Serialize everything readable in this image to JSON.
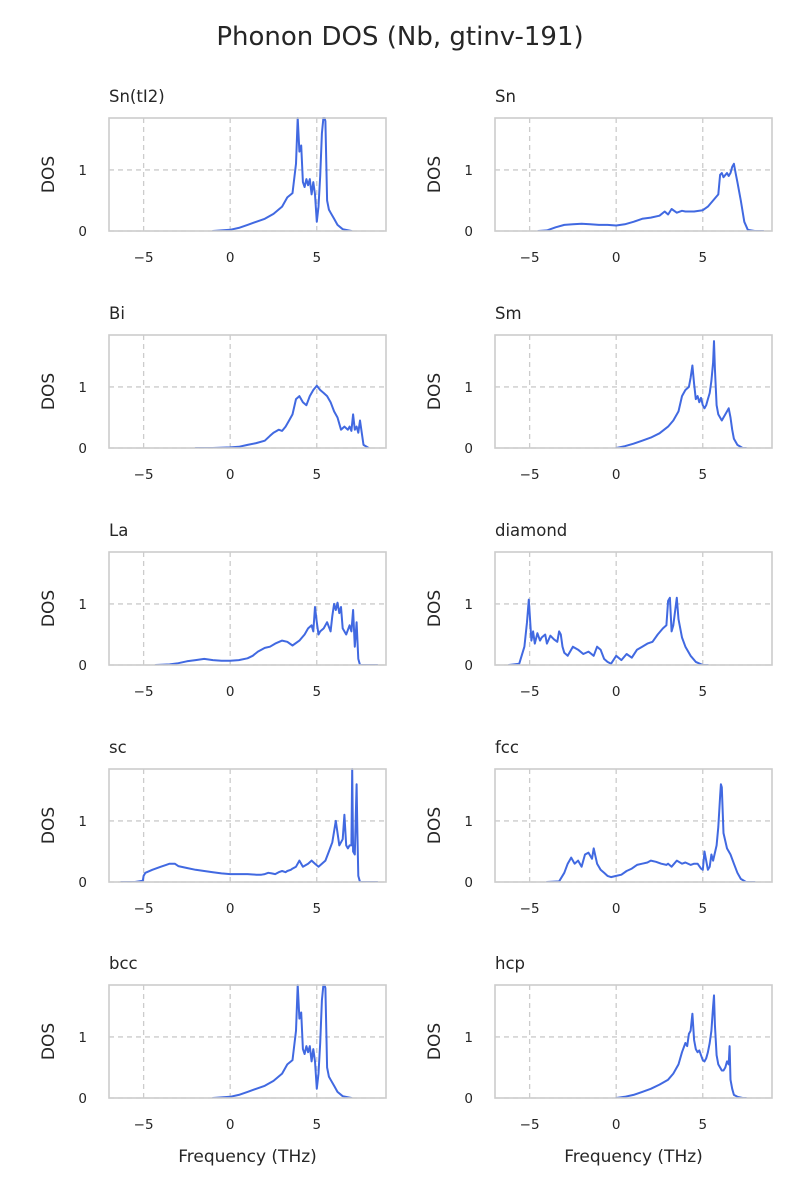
{
  "figure": {
    "title": "Phonon DOS (Nb, gtinv-191)",
    "line_color": "#4169e1"
  },
  "chart_data": [
    {
      "type": "line",
      "title": "Sn(tI2)",
      "xlabel": "",
      "ylabel": "DOS",
      "xlim": [
        -7,
        9
      ],
      "ylim": [
        0,
        1.85
      ],
      "xticks": [
        -5,
        0,
        5
      ],
      "yticks": [
        0,
        1
      ],
      "grid": true,
      "x": [
        -1.0,
        -0.5,
        0.0,
        0.5,
        1.0,
        1.5,
        2.0,
        2.5,
        3.0,
        3.3,
        3.6,
        3.8,
        3.9,
        4.0,
        4.1,
        4.2,
        4.3,
        4.4,
        4.5,
        4.6,
        4.7,
        4.8,
        4.9,
        5.0,
        5.1,
        5.2,
        5.3,
        5.4,
        5.5,
        5.6,
        5.7,
        5.8,
        6.0,
        6.2,
        6.5,
        7.0
      ],
      "y": [
        0.0,
        0.01,
        0.02,
        0.05,
        0.1,
        0.15,
        0.2,
        0.28,
        0.4,
        0.55,
        0.62,
        1.1,
        1.85,
        1.3,
        1.4,
        0.8,
        0.72,
        0.85,
        0.75,
        0.85,
        0.6,
        0.8,
        0.6,
        0.15,
        0.4,
        0.9,
        1.6,
        1.9,
        1.8,
        0.5,
        0.35,
        0.3,
        0.2,
        0.1,
        0.03,
        0.0
      ]
    },
    {
      "type": "line",
      "title": "Sn",
      "xlabel": "",
      "ylabel": "DOS",
      "xlim": [
        -7,
        9
      ],
      "ylim": [
        0,
        1.85
      ],
      "xticks": [
        -5,
        0,
        5
      ],
      "yticks": [
        0,
        1
      ],
      "grid": true,
      "x": [
        -4.5,
        -4.0,
        -3.5,
        -3.0,
        -2.5,
        -2.0,
        -1.5,
        -1.0,
        -0.5,
        0.0,
        0.5,
        1.0,
        1.5,
        2.0,
        2.5,
        2.8,
        3.0,
        3.2,
        3.5,
        3.8,
        4.0,
        4.5,
        5.0,
        5.3,
        5.6,
        5.9,
        6.0,
        6.1,
        6.2,
        6.4,
        6.5,
        6.6,
        6.7,
        6.8,
        6.9,
        7.0,
        7.1,
        7.2,
        7.4,
        7.6,
        8.0,
        8.5
      ],
      "y": [
        0.0,
        0.01,
        0.06,
        0.1,
        0.11,
        0.12,
        0.11,
        0.1,
        0.1,
        0.09,
        0.11,
        0.15,
        0.2,
        0.22,
        0.25,
        0.32,
        0.27,
        0.36,
        0.3,
        0.33,
        0.32,
        0.32,
        0.34,
        0.4,
        0.5,
        0.6,
        0.92,
        0.95,
        0.88,
        0.95,
        0.9,
        0.95,
        1.05,
        1.1,
        0.95,
        0.8,
        0.65,
        0.5,
        0.15,
        0.02,
        0.0,
        0.0
      ]
    },
    {
      "type": "line",
      "title": "Bi",
      "xlabel": "",
      "ylabel": "DOS",
      "xlim": [
        -7,
        9
      ],
      "ylim": [
        0,
        1.85
      ],
      "xticks": [
        -5,
        0,
        5
      ],
      "yticks": [
        0,
        1
      ],
      "grid": true,
      "x": [
        -2.0,
        -1.0,
        0.0,
        0.5,
        1.0,
        1.5,
        2.0,
        2.3,
        2.5,
        2.8,
        3.0,
        3.2,
        3.4,
        3.6,
        3.8,
        4.0,
        4.2,
        4.4,
        4.6,
        4.8,
        5.0,
        5.2,
        5.4,
        5.6,
        5.8,
        6.0,
        6.2,
        6.4,
        6.6,
        6.8,
        6.9,
        7.0,
        7.1,
        7.2,
        7.3,
        7.4,
        7.5,
        7.7,
        8.0
      ],
      "y": [
        0.0,
        0.0,
        0.01,
        0.02,
        0.05,
        0.08,
        0.12,
        0.2,
        0.25,
        0.3,
        0.28,
        0.35,
        0.45,
        0.55,
        0.8,
        0.85,
        0.75,
        0.7,
        0.85,
        0.95,
        1.02,
        0.95,
        0.9,
        0.85,
        0.75,
        0.6,
        0.5,
        0.3,
        0.35,
        0.3,
        0.35,
        0.28,
        0.55,
        0.3,
        0.35,
        0.25,
        0.45,
        0.05,
        0.0
      ]
    },
    {
      "type": "line",
      "title": "Sm",
      "xlabel": "",
      "ylabel": "DOS",
      "xlim": [
        -7,
        9
      ],
      "ylim": [
        0,
        1.85
      ],
      "xticks": [
        -5,
        0,
        5
      ],
      "yticks": [
        0,
        1
      ],
      "grid": true,
      "x": [
        0.0,
        0.5,
        1.0,
        1.5,
        2.0,
        2.5,
        3.0,
        3.3,
        3.6,
        3.8,
        4.0,
        4.2,
        4.3,
        4.4,
        4.5,
        4.6,
        4.7,
        4.8,
        4.9,
        5.0,
        5.1,
        5.2,
        5.3,
        5.4,
        5.5,
        5.6,
        5.65,
        5.7,
        5.8,
        5.9,
        6.0,
        6.1,
        6.2,
        6.3,
        6.4,
        6.5,
        6.6,
        6.7,
        6.8,
        7.0,
        7.3,
        7.5
      ],
      "y": [
        0.0,
        0.03,
        0.07,
        0.12,
        0.17,
        0.24,
        0.35,
        0.45,
        0.6,
        0.85,
        0.95,
        1.0,
        1.15,
        1.35,
        1.05,
        0.8,
        0.85,
        0.75,
        0.82,
        0.7,
        0.65,
        0.7,
        0.8,
        0.9,
        1.1,
        1.4,
        1.75,
        1.3,
        0.7,
        0.55,
        0.5,
        0.45,
        0.5,
        0.55,
        0.6,
        0.65,
        0.5,
        0.3,
        0.15,
        0.05,
        0.0,
        0.0
      ]
    },
    {
      "type": "line",
      "title": "La",
      "xlabel": "",
      "ylabel": "DOS",
      "xlim": [
        -7,
        9
      ],
      "ylim": [
        0,
        1.85
      ],
      "xticks": [
        -5,
        0,
        5
      ],
      "yticks": [
        0,
        1
      ],
      "grid": true,
      "x": [
        -4.3,
        -3.5,
        -3.0,
        -2.5,
        -2.0,
        -1.5,
        -1.0,
        -0.5,
        0.0,
        0.5,
        1.0,
        1.3,
        1.6,
        2.0,
        2.3,
        2.6,
        3.0,
        3.3,
        3.6,
        4.0,
        4.3,
        4.5,
        4.7,
        4.8,
        4.9,
        5.0,
        5.1,
        5.2,
        5.4,
        5.6,
        5.8,
        5.9,
        6.0,
        6.1,
        6.2,
        6.3,
        6.4,
        6.5,
        6.7,
        6.9,
        7.0,
        7.1,
        7.2,
        7.3,
        7.4,
        7.5,
        8.0,
        8.5
      ],
      "y": [
        0.0,
        0.01,
        0.03,
        0.06,
        0.08,
        0.1,
        0.08,
        0.07,
        0.07,
        0.08,
        0.11,
        0.15,
        0.22,
        0.28,
        0.3,
        0.35,
        0.4,
        0.38,
        0.32,
        0.4,
        0.5,
        0.6,
        0.65,
        0.55,
        0.95,
        0.7,
        0.5,
        0.55,
        0.6,
        0.7,
        0.55,
        0.8,
        1.0,
        0.9,
        1.02,
        0.85,
        0.95,
        0.6,
        0.5,
        0.65,
        0.55,
        0.9,
        0.3,
        0.7,
        0.1,
        0.0,
        0.0,
        0.0
      ]
    },
    {
      "type": "line",
      "title": "diamond",
      "xlabel": "",
      "ylabel": "DOS",
      "xlim": [
        -7,
        9
      ],
      "ylim": [
        0,
        1.85
      ],
      "xticks": [
        -5,
        0,
        5
      ],
      "yticks": [
        0,
        1
      ],
      "grid": true,
      "x": [
        -6.2,
        -5.6,
        -5.3,
        -5.15,
        -5.05,
        -4.9,
        -4.8,
        -4.7,
        -4.55,
        -4.4,
        -4.3,
        -4.1,
        -4.0,
        -3.8,
        -3.6,
        -3.4,
        -3.3,
        -3.2,
        -3.1,
        -3.0,
        -2.8,
        -2.5,
        -2.2,
        -1.9,
        -1.6,
        -1.3,
        -1.1,
        -0.9,
        -0.7,
        -0.5,
        -0.3,
        0.0,
        0.3,
        0.6,
        0.9,
        1.2,
        1.5,
        1.8,
        2.1,
        2.4,
        2.7,
        2.9,
        3.0,
        3.1,
        3.2,
        3.3,
        3.5,
        3.6,
        3.8,
        4.0,
        4.3,
        4.6,
        5.0,
        5.3
      ],
      "y": [
        0.0,
        0.02,
        0.3,
        0.7,
        1.07,
        0.4,
        0.55,
        0.35,
        0.52,
        0.4,
        0.45,
        0.5,
        0.35,
        0.48,
        0.42,
        0.38,
        0.55,
        0.5,
        0.3,
        0.2,
        0.15,
        0.3,
        0.25,
        0.18,
        0.22,
        0.15,
        0.3,
        0.25,
        0.1,
        0.05,
        0.02,
        0.15,
        0.08,
        0.18,
        0.12,
        0.25,
        0.3,
        0.35,
        0.38,
        0.5,
        0.6,
        0.65,
        1.05,
        1.1,
        0.55,
        0.65,
        1.1,
        0.75,
        0.45,
        0.3,
        0.15,
        0.05,
        0.0,
        0.0
      ]
    },
    {
      "type": "line",
      "title": "sc",
      "xlabel": "",
      "ylabel": "DOS",
      "xlim": [
        -7,
        9
      ],
      "ylim": [
        0,
        1.85
      ],
      "xticks": [
        -5,
        0,
        5
      ],
      "yticks": [
        0,
        1
      ],
      "grid": true,
      "x": [
        -6.3,
        -5.5,
        -5.05,
        -5.0,
        -4.9,
        -4.5,
        -4.0,
        -3.7,
        -3.5,
        -3.2,
        -3.0,
        -2.5,
        -2.0,
        -1.5,
        -1.0,
        -0.5,
        0.0,
        0.5,
        1.0,
        1.5,
        1.8,
        2.0,
        2.2,
        2.4,
        2.6,
        2.8,
        3.0,
        3.2,
        3.3,
        3.5,
        3.6,
        3.8,
        4.0,
        4.2,
        4.5,
        4.7,
        4.9,
        5.1,
        5.3,
        5.5,
        5.7,
        5.9,
        6.1,
        6.3,
        6.4,
        6.5,
        6.6,
        6.7,
        6.8,
        6.9,
        7.0,
        7.05,
        7.1,
        7.2,
        7.3,
        7.35,
        7.4,
        7.5,
        8.0,
        8.5
      ],
      "y": [
        0.0,
        0.0,
        0.02,
        0.1,
        0.15,
        0.2,
        0.25,
        0.28,
        0.3,
        0.3,
        0.26,
        0.23,
        0.2,
        0.18,
        0.16,
        0.14,
        0.13,
        0.13,
        0.13,
        0.12,
        0.12,
        0.13,
        0.15,
        0.14,
        0.13,
        0.16,
        0.18,
        0.16,
        0.18,
        0.2,
        0.22,
        0.25,
        0.35,
        0.25,
        0.3,
        0.35,
        0.3,
        0.25,
        0.3,
        0.35,
        0.5,
        0.65,
        1.0,
        0.6,
        0.65,
        0.7,
        1.1,
        0.6,
        0.55,
        0.6,
        0.6,
        1.85,
        0.5,
        0.45,
        1.6,
        0.8,
        0.1,
        0.0,
        0.0,
        0.0
      ]
    },
    {
      "type": "line",
      "title": "fcc",
      "xlabel": "",
      "ylabel": "DOS",
      "xlim": [
        -7,
        9
      ],
      "ylim": [
        0,
        1.85
      ],
      "xticks": [
        -5,
        0,
        5
      ],
      "yticks": [
        0,
        1
      ],
      "grid": true,
      "x": [
        -4.0,
        -3.3,
        -3.0,
        -2.8,
        -2.6,
        -2.4,
        -2.2,
        -2.0,
        -1.8,
        -1.6,
        -1.4,
        -1.3,
        -1.1,
        -0.9,
        -0.7,
        -0.5,
        -0.3,
        0.0,
        0.3,
        0.6,
        0.9,
        1.2,
        1.5,
        1.8,
        2.0,
        2.3,
        2.6,
        2.9,
        3.0,
        3.2,
        3.5,
        3.8,
        4.0,
        4.3,
        4.5,
        4.7,
        4.9,
        5.0,
        5.1,
        5.3,
        5.4,
        5.5,
        5.6,
        5.8,
        5.9,
        6.0,
        6.05,
        6.1,
        6.2,
        6.4,
        6.6,
        6.8,
        7.0,
        7.2,
        7.5,
        8.0
      ],
      "y": [
        0.0,
        0.01,
        0.15,
        0.3,
        0.4,
        0.3,
        0.35,
        0.25,
        0.45,
        0.48,
        0.38,
        0.55,
        0.3,
        0.2,
        0.15,
        0.1,
        0.08,
        0.1,
        0.12,
        0.18,
        0.22,
        0.28,
        0.3,
        0.32,
        0.35,
        0.33,
        0.3,
        0.28,
        0.3,
        0.25,
        0.35,
        0.3,
        0.32,
        0.28,
        0.3,
        0.3,
        0.22,
        0.2,
        0.5,
        0.2,
        0.25,
        0.45,
        0.35,
        0.6,
        0.9,
        1.4,
        1.6,
        1.55,
        0.8,
        0.55,
        0.45,
        0.3,
        0.15,
        0.05,
        0.0,
        0.0
      ]
    },
    {
      "type": "line",
      "title": "bcc",
      "xlabel": "Frequency (THz)",
      "ylabel": "DOS",
      "xlim": [
        -7,
        9
      ],
      "ylim": [
        0,
        1.85
      ],
      "xticks": [
        -5,
        0,
        5
      ],
      "yticks": [
        0,
        1
      ],
      "grid": true,
      "x": [
        -1.0,
        -0.5,
        0.0,
        0.5,
        1.0,
        1.5,
        2.0,
        2.5,
        3.0,
        3.3,
        3.6,
        3.8,
        3.9,
        4.0,
        4.1,
        4.2,
        4.3,
        4.4,
        4.5,
        4.6,
        4.7,
        4.8,
        4.9,
        5.0,
        5.1,
        5.2,
        5.3,
        5.4,
        5.5,
        5.6,
        5.7,
        5.8,
        6.0,
        6.2,
        6.5,
        7.0
      ],
      "y": [
        0.0,
        0.01,
        0.02,
        0.05,
        0.1,
        0.15,
        0.2,
        0.28,
        0.4,
        0.55,
        0.62,
        1.1,
        1.85,
        1.3,
        1.4,
        0.8,
        0.72,
        0.85,
        0.75,
        0.85,
        0.6,
        0.8,
        0.6,
        0.15,
        0.4,
        0.9,
        1.6,
        1.9,
        1.8,
        0.5,
        0.35,
        0.3,
        0.2,
        0.1,
        0.03,
        0.0
      ]
    },
    {
      "type": "line",
      "title": "hcp",
      "xlabel": "Frequency (THz)",
      "ylabel": "DOS",
      "xlim": [
        -7,
        9
      ],
      "ylim": [
        0,
        1.85
      ],
      "xticks": [
        -5,
        0,
        5
      ],
      "yticks": [
        0,
        1
      ],
      "grid": true,
      "x": [
        0.0,
        0.5,
        1.0,
        1.5,
        2.0,
        2.5,
        3.0,
        3.3,
        3.6,
        3.8,
        4.0,
        4.1,
        4.2,
        4.3,
        4.4,
        4.5,
        4.6,
        4.7,
        4.8,
        4.9,
        5.0,
        5.1,
        5.2,
        5.3,
        5.4,
        5.5,
        5.6,
        5.65,
        5.7,
        5.8,
        5.9,
        6.0,
        6.1,
        6.2,
        6.3,
        6.4,
        6.5,
        6.55,
        6.6,
        6.7,
        6.8,
        7.0,
        7.3,
        7.5
      ],
      "y": [
        0.0,
        0.02,
        0.05,
        0.1,
        0.15,
        0.22,
        0.3,
        0.4,
        0.55,
        0.75,
        0.9,
        0.85,
        1.05,
        1.1,
        1.38,
        0.95,
        0.8,
        0.75,
        0.78,
        0.7,
        0.62,
        0.6,
        0.65,
        0.75,
        0.9,
        1.1,
        1.5,
        1.68,
        1.2,
        0.7,
        0.55,
        0.5,
        0.45,
        0.45,
        0.5,
        0.6,
        0.55,
        0.85,
        0.3,
        0.15,
        0.05,
        0.02,
        0.0,
        0.0
      ]
    }
  ]
}
